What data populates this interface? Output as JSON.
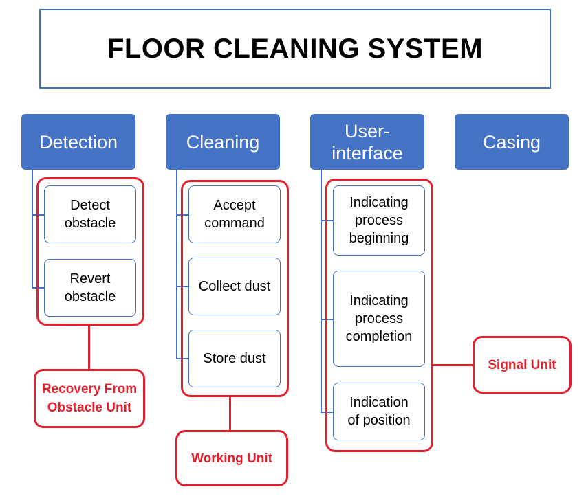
{
  "title": "FLOOR CLEANING SYSTEM",
  "categories": [
    {
      "label": "Detection",
      "items": [
        "Detect\nobstacle",
        "Revert\nobstacle"
      ],
      "group": "Recovery From\nObstacle Unit"
    },
    {
      "label": "Cleaning",
      "items": [
        "Accept\ncommand",
        "Collect dust",
        "Store dust"
      ],
      "group": "Working Unit"
    },
    {
      "label": "User-\ninterface",
      "items": [
        "Indicating\nprocess\nbeginning",
        "Indicating\nprocess\ncompletion",
        "Indication\nof position"
      ],
      "group": "Signal Unit"
    },
    {
      "label": "Casing",
      "items": [],
      "group": ""
    }
  ],
  "colors": {
    "header": "#4472c4",
    "highlight": "#e3202b"
  }
}
